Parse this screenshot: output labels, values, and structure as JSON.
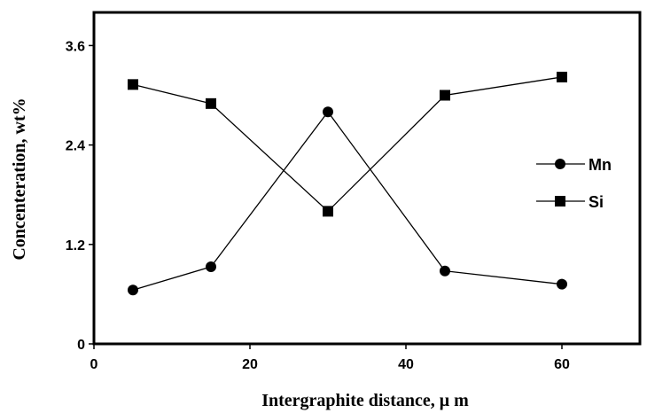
{
  "chart_data": {
    "type": "line",
    "title": "",
    "xlabel": "Intergraphite distance, μ m",
    "ylabel": "Concenteration, wt%",
    "xlim": [
      0,
      70
    ],
    "ylim": [
      0,
      4
    ],
    "x_ticks": [
      "0",
      "20",
      "40",
      "60"
    ],
    "y_ticks": [
      "0",
      "1.2",
      "2.4",
      "3.6"
    ],
    "grid": false,
    "legend_position": "right",
    "series": [
      {
        "name": "Mn",
        "marker": "circle",
        "x": [
          5,
          15,
          30,
          45,
          60
        ],
        "y": [
          0.65,
          0.93,
          2.8,
          0.88,
          0.72
        ]
      },
      {
        "name": "Si",
        "marker": "square",
        "x": [
          5,
          15,
          30,
          45,
          60
        ],
        "y": [
          3.13,
          2.9,
          1.6,
          3.0,
          3.22
        ]
      }
    ],
    "colors": {
      "line": "#000000",
      "background": "#ffffff"
    }
  }
}
